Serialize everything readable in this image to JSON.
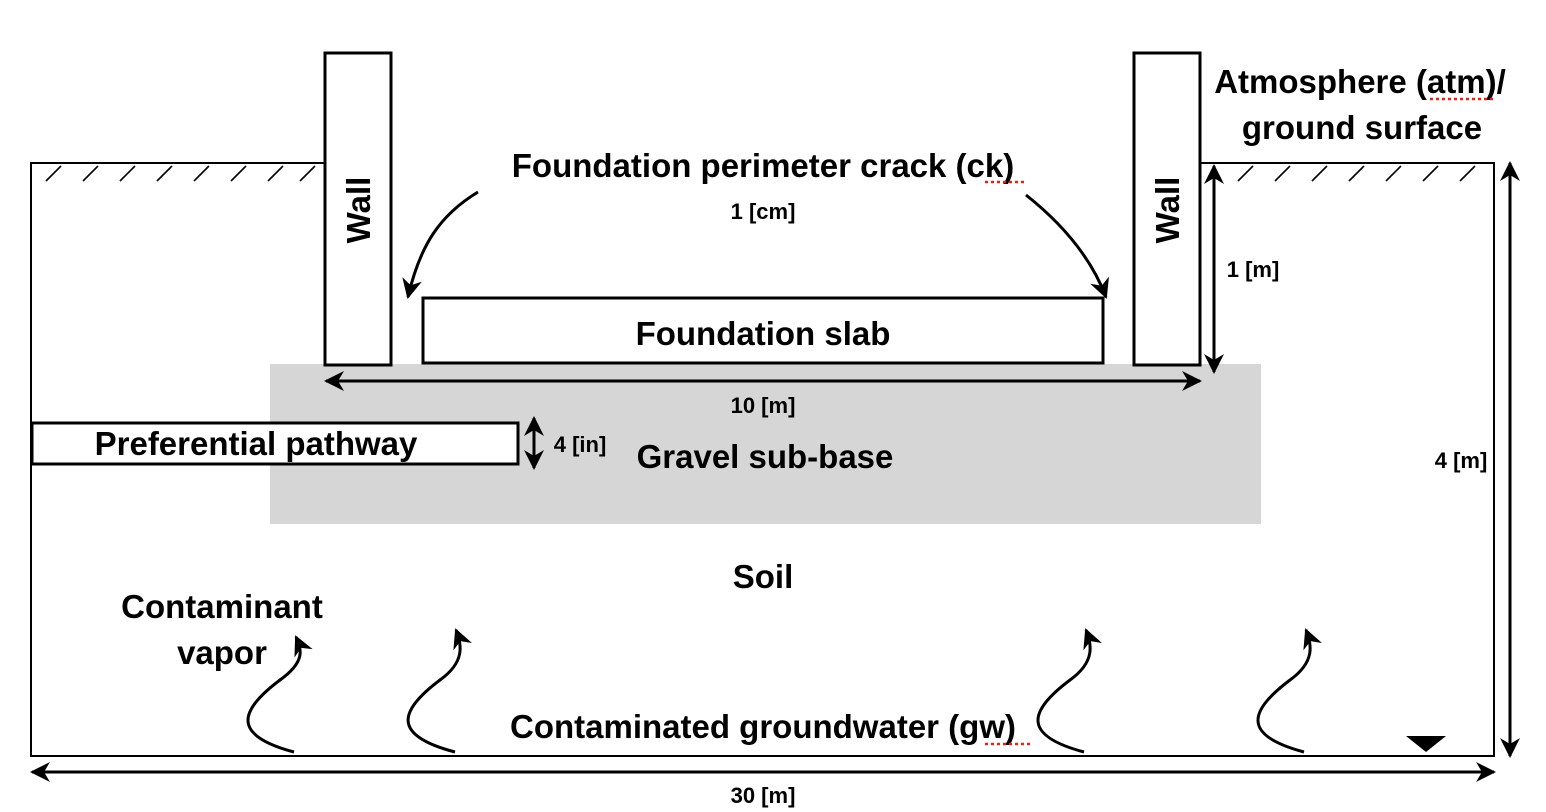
{
  "labels": {
    "atmosphere_line1": "Atmosphere (atm)/",
    "atmosphere_line2": "ground surface",
    "crack": "Foundation perimeter crack (ck)",
    "crack_width": "1 [cm]",
    "wall_left": "Wall",
    "wall_right": "Wall",
    "wall_height": "1 [m]",
    "slab": "Foundation slab",
    "foundation_width": "10 [m]",
    "pathway": "Preferential pathway",
    "pathway_height": "4 [in]",
    "gravel": "Gravel sub-base",
    "depth": "4 [m]",
    "soil": "Soil",
    "vapor_line1": "Contaminant",
    "vapor_line2": "vapor",
    "groundwater": "Contaminated groundwater (gw)",
    "domain_width": "30 [m]"
  },
  "colors": {
    "gravel": "#d6d6d6",
    "stroke": "#000000",
    "spellcheck": "#e0231a"
  }
}
